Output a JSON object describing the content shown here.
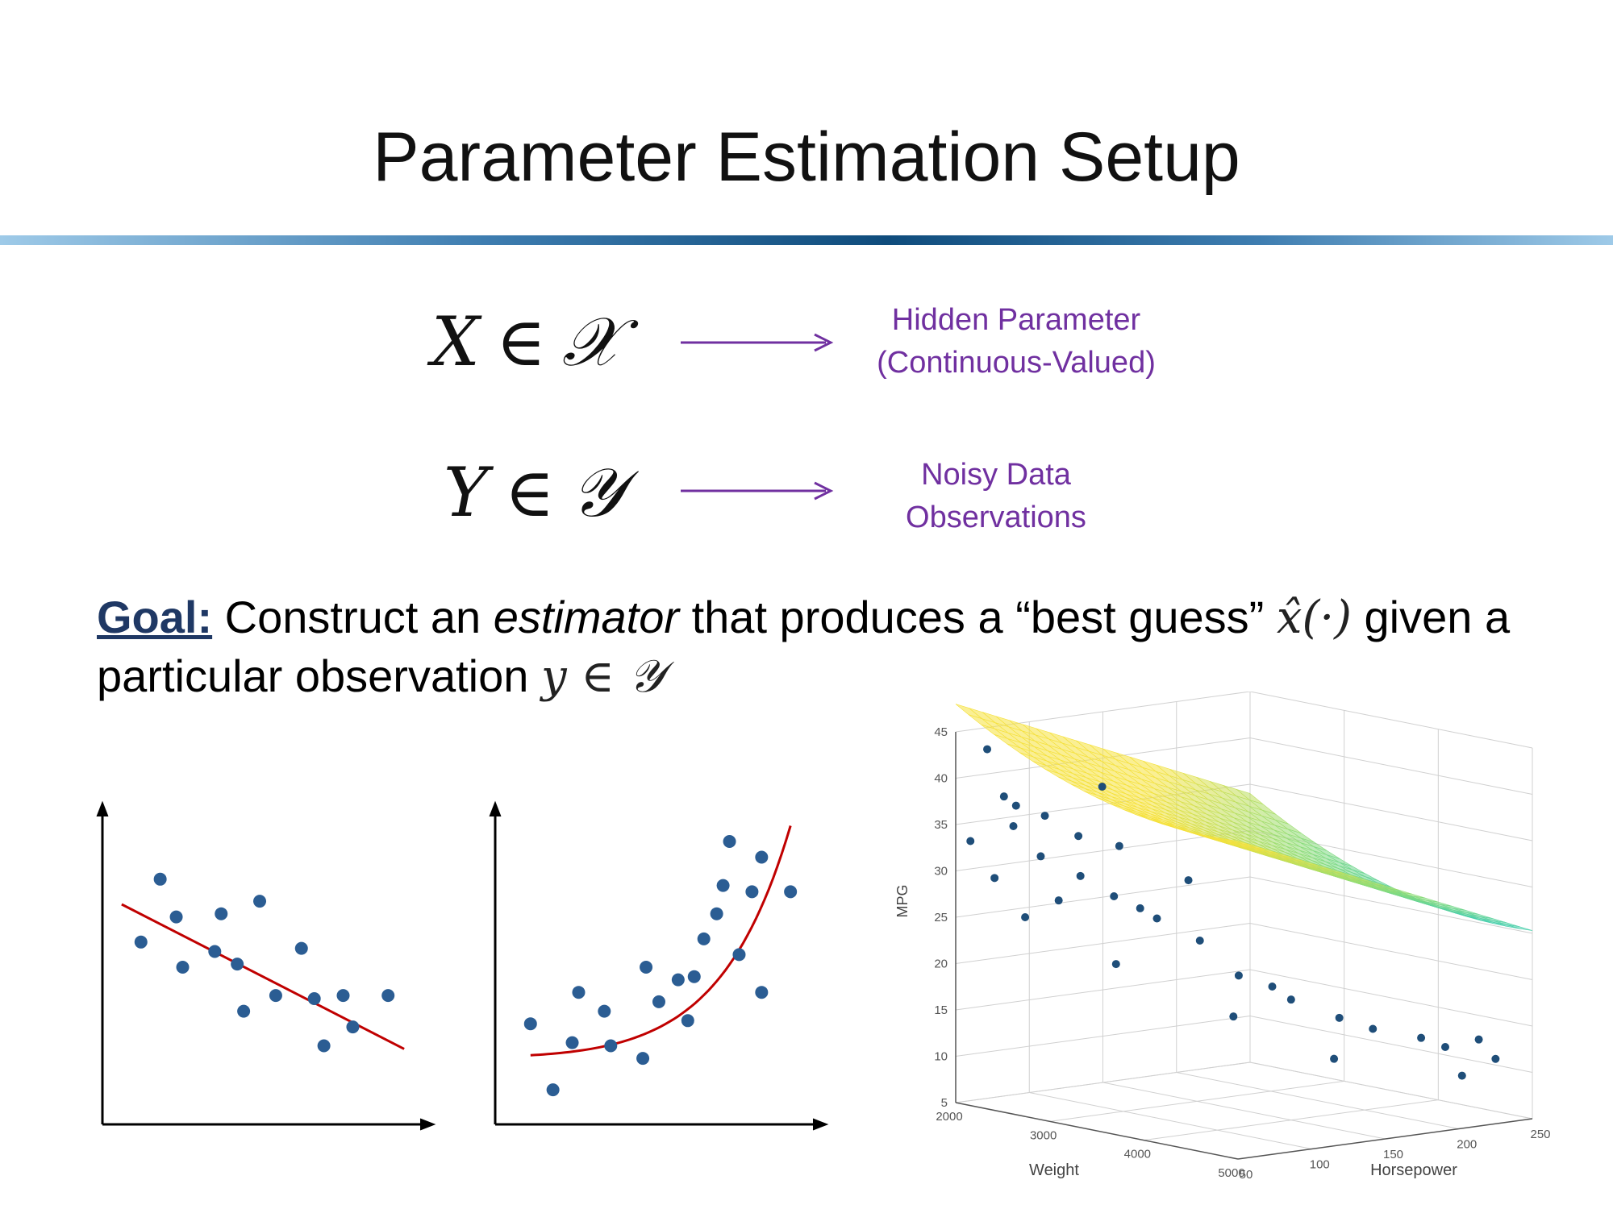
{
  "slide": {
    "title": "Parameter Estimation Setup"
  },
  "setup": {
    "hidden": {
      "var": "X",
      "relation": "∈",
      "set": "𝒳",
      "label_line1": "Hidden Parameter",
      "label_line2": "(Continuous-Valued)"
    },
    "observed": {
      "var": "Y",
      "relation": "∈",
      "set": "𝒴",
      "label_line1": "Noisy Data",
      "label_line2": "Observations"
    }
  },
  "goal": {
    "key": "Goal:",
    "text1": " Construct an ",
    "emph": "estimator",
    "text2": " that produces a “best guess” ",
    "estimator_symbol": "x̂(·)",
    "text3": " given a particular observation ",
    "observation_symbol": "y ∈ 𝒴"
  },
  "colors": {
    "title_bar_dark": "#0f4c7c",
    "title_bar_light": "#9ecae8",
    "label": "#7030a0",
    "goal_key": "#1f3864",
    "point": "#2b5d93",
    "fit": "#c00000"
  },
  "chart_data": [
    {
      "type": "scatter",
      "title": "",
      "xlabel": "",
      "ylabel": "",
      "xlim": [
        0,
        10
      ],
      "ylim": [
        0,
        10
      ],
      "points": [
        {
          "x": 1.2,
          "y": 5.8
        },
        {
          "x": 1.8,
          "y": 7.8
        },
        {
          "x": 2.3,
          "y": 6.6
        },
        {
          "x": 2.5,
          "y": 5.0
        },
        {
          "x": 3.5,
          "y": 5.5
        },
        {
          "x": 3.7,
          "y": 6.7
        },
        {
          "x": 4.2,
          "y": 5.1
        },
        {
          "x": 4.4,
          "y": 3.6
        },
        {
          "x": 4.9,
          "y": 7.1
        },
        {
          "x": 5.4,
          "y": 4.1
        },
        {
          "x": 6.2,
          "y": 5.6
        },
        {
          "x": 6.6,
          "y": 4.0
        },
        {
          "x": 6.9,
          "y": 2.5
        },
        {
          "x": 7.5,
          "y": 4.1
        },
        {
          "x": 7.8,
          "y": 3.1
        },
        {
          "x": 8.9,
          "y": 4.1
        }
      ],
      "fit": {
        "kind": "linear",
        "x": [
          0.6,
          9.4
        ],
        "y": [
          7.0,
          2.4
        ]
      }
    },
    {
      "type": "scatter",
      "title": "",
      "xlabel": "",
      "ylabel": "",
      "xlim": [
        0,
        10
      ],
      "ylim": [
        0,
        10
      ],
      "points": [
        {
          "x": 1.1,
          "y": 3.2
        },
        {
          "x": 1.8,
          "y": 1.1
        },
        {
          "x": 2.4,
          "y": 2.6
        },
        {
          "x": 2.6,
          "y": 4.2
        },
        {
          "x": 3.4,
          "y": 3.6
        },
        {
          "x": 3.6,
          "y": 2.5
        },
        {
          "x": 4.6,
          "y": 2.1
        },
        {
          "x": 4.7,
          "y": 5.0
        },
        {
          "x": 5.1,
          "y": 3.9
        },
        {
          "x": 5.7,
          "y": 4.6
        },
        {
          "x": 6.0,
          "y": 3.3
        },
        {
          "x": 6.2,
          "y": 4.7
        },
        {
          "x": 6.5,
          "y": 5.9
        },
        {
          "x": 6.9,
          "y": 6.7
        },
        {
          "x": 7.1,
          "y": 7.6
        },
        {
          "x": 7.3,
          "y": 9.0
        },
        {
          "x": 7.6,
          "y": 5.4
        },
        {
          "x": 8.0,
          "y": 7.4
        },
        {
          "x": 8.3,
          "y": 8.5
        },
        {
          "x": 8.3,
          "y": 4.2
        },
        {
          "x": 9.2,
          "y": 7.4
        }
      ],
      "fit": {
        "kind": "exponential",
        "x_start": 1.1,
        "x_end": 9.2,
        "y_start": 2.2,
        "y_end": 9.5
      }
    },
    {
      "type": "scatter-3d-surface",
      "title": "",
      "xlabel": "Weight",
      "ylabel": "Horsepower",
      "zlabel": "MPG",
      "xlim": [
        2000,
        5000
      ],
      "ylim": [
        50,
        250
      ],
      "zlim": [
        5,
        45
      ],
      "x_ticks": [
        "2000",
        "3000",
        "4000",
        "5000"
      ],
      "y_ticks": [
        "50",
        "100",
        "150",
        "200",
        "250"
      ],
      "z_ticks": [
        "5",
        "10",
        "15",
        "20",
        "25",
        "30",
        "35",
        "40",
        "45"
      ],
      "points": [
        {
          "weight": 2100,
          "hp": 65,
          "mpg": 43
        },
        {
          "weight": 2200,
          "hp": 70,
          "mpg": 38
        },
        {
          "weight": 2250,
          "hp": 75,
          "mpg": 37
        },
        {
          "weight": 2300,
          "hp": 70,
          "mpg": 35
        },
        {
          "weight": 2400,
          "hp": 85,
          "mpg": 36
        },
        {
          "weight": 2000,
          "hp": 60,
          "mpg": 33
        },
        {
          "weight": 2200,
          "hp": 95,
          "mpg": 31
        },
        {
          "weight": 2100,
          "hp": 70,
          "mpg": 29
        },
        {
          "weight": 2600,
          "hp": 95,
          "mpg": 34
        },
        {
          "weight": 2800,
          "hp": 110,
          "mpg": 33
        },
        {
          "weight": 2700,
          "hp": 90,
          "mpg": 30
        },
        {
          "weight": 2500,
          "hp": 88,
          "mpg": 27
        },
        {
          "weight": 2900,
          "hp": 100,
          "mpg": 28
        },
        {
          "weight": 3100,
          "hp": 105,
          "mpg": 27
        },
        {
          "weight": 3200,
          "hp": 110,
          "mpg": 26
        },
        {
          "weight": 3300,
          "hp": 125,
          "mpg": 30
        },
        {
          "weight": 2300,
          "hp": 78,
          "mpg": 25
        },
        {
          "weight": 3000,
          "hp": 95,
          "mpg": 21
        },
        {
          "weight": 3500,
          "hp": 120,
          "mpg": 24
        },
        {
          "weight": 3600,
          "hp": 140,
          "mpg": 20
        },
        {
          "weight": 3800,
          "hp": 150,
          "mpg": 19
        },
        {
          "weight": 4000,
          "hp": 150,
          "mpg": 18
        },
        {
          "weight": 4200,
          "hp": 170,
          "mpg": 16
        },
        {
          "weight": 4400,
          "hp": 180,
          "mpg": 15
        },
        {
          "weight": 4600,
          "hp": 200,
          "mpg": 14
        },
        {
          "weight": 4700,
          "hp": 210,
          "mpg": 13
        },
        {
          "weight": 4900,
          "hp": 220,
          "mpg": 14
        },
        {
          "weight": 5000,
          "hp": 225,
          "mpg": 12
        },
        {
          "weight": 4800,
          "hp": 215,
          "mpg": 10
        },
        {
          "weight": 4300,
          "hp": 160,
          "mpg": 12
        },
        {
          "weight": 3700,
          "hp": 130,
          "mpg": 16
        },
        {
          "weight": 2900,
          "hp": 92,
          "mpg": 40
        }
      ],
      "surface": {
        "kind": "regression-plane",
        "colormap": "parula"
      }
    }
  ]
}
